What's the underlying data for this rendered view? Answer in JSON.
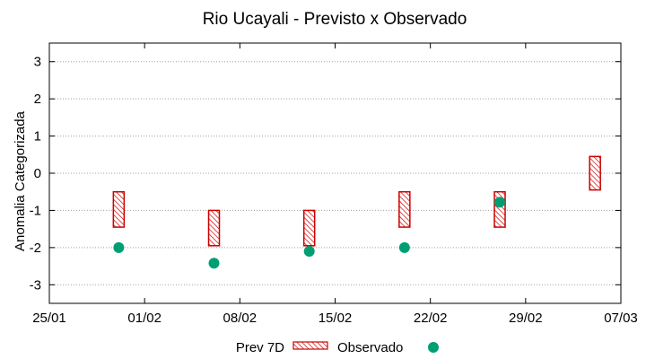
{
  "chart_data": {
    "type": "scatter",
    "title": "Rio Ucayali - Previsto x Observado",
    "xlabel": "",
    "ylabel": "Anomalia Categorizada",
    "ylim": [
      -3.5,
      3.5
    ],
    "yticks": [
      3,
      2,
      1,
      0,
      -1,
      -2,
      -3
    ],
    "ytick_labels": [
      "3",
      "2",
      "1",
      "0",
      "-1",
      "-2",
      "-3"
    ],
    "xlim_days": [
      0,
      42
    ],
    "xticks_days": [
      0,
      7,
      14,
      21,
      28,
      35,
      42
    ],
    "xtick_labels": [
      "25/01",
      "01/02",
      "08/02",
      "15/02",
      "22/02",
      "29/02",
      "07/03"
    ],
    "grid": true,
    "series": [
      {
        "name": "Prev 7D",
        "kind": "range-box",
        "color": "#cc0000",
        "points": [
          {
            "x": 5.1,
            "low": -1.45,
            "high": -0.5
          },
          {
            "x": 12.1,
            "low": -1.95,
            "high": -1.0
          },
          {
            "x": 19.1,
            "low": -1.95,
            "high": -1.0
          },
          {
            "x": 26.1,
            "low": -1.45,
            "high": -0.5
          },
          {
            "x": 33.1,
            "low": -1.45,
            "high": -0.5
          },
          {
            "x": 40.1,
            "low": -0.45,
            "high": 0.45
          }
        ]
      },
      {
        "name": "Observado",
        "kind": "point",
        "color": "#009e73",
        "points": [
          {
            "x": 5.1,
            "y": -2.0
          },
          {
            "x": 12.1,
            "y": -2.42
          },
          {
            "x": 19.1,
            "y": -2.1
          },
          {
            "x": 26.1,
            "y": -2.0
          },
          {
            "x": 33.1,
            "y": -0.78
          }
        ]
      }
    ],
    "legend": {
      "position": "bottom-center",
      "entries": [
        "Prev 7D",
        "Observado"
      ]
    }
  }
}
